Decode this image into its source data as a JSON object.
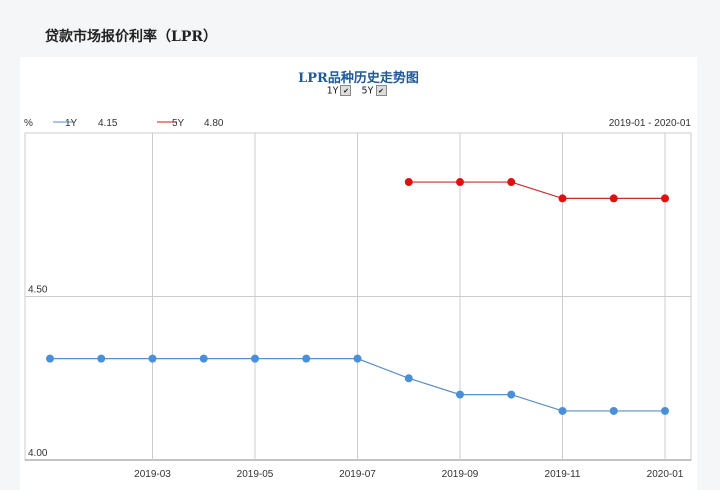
{
  "heading": "贷款市场报价利率（LPR）",
  "chart_data": {
    "type": "line",
    "title": "LPR品种历史走势图",
    "ylabel": "%",
    "date_range": "2019-01 - 2020-01",
    "toggles": [
      {
        "label": "1Y",
        "checked": true
      },
      {
        "label": "5Y",
        "checked": true
      }
    ],
    "ylim": [
      4.0,
      5.0
    ],
    "yticks": [
      "4.00",
      "4.50"
    ],
    "xticks": [
      "2019-03",
      "2019-05",
      "2019-07",
      "2019-09",
      "2019-11",
      "2020-01"
    ],
    "x": [
      "2019-01",
      "2019-02",
      "2019-03",
      "2019-04",
      "2019-05",
      "2019-06",
      "2019-07",
      "2019-08",
      "2019-09",
      "2019-10",
      "2019-11",
      "2019-12",
      "2020-01"
    ],
    "grid": true,
    "series": [
      {
        "name": "1Y",
        "latest": "4.15",
        "color": "#4a90d9",
        "values": [
          4.31,
          4.31,
          4.31,
          4.31,
          4.31,
          4.31,
          4.31,
          4.25,
          4.2,
          4.2,
          4.15,
          4.15,
          4.15
        ]
      },
      {
        "name": "5Y",
        "latest": "4.80",
        "color": "#e01010",
        "values": [
          null,
          null,
          null,
          null,
          null,
          null,
          null,
          4.85,
          4.85,
          4.85,
          4.8,
          4.8,
          4.8
        ]
      }
    ]
  }
}
